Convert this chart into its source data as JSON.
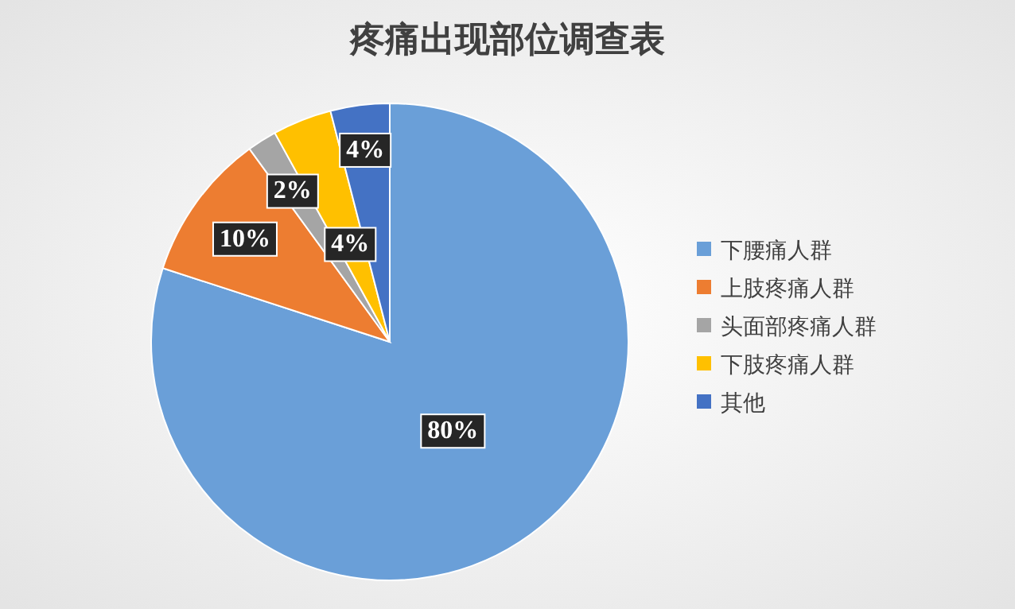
{
  "chart_data": {
    "type": "pie",
    "title": "疼痛出现部位调查表",
    "categories": [
      "下腰痛人群",
      "上肢疼痛人群",
      "头面部疼痛人群",
      "下肢疼痛人群",
      "其他"
    ],
    "values": [
      80,
      10,
      2,
      4,
      4
    ],
    "colors": [
      "#6a9fd8",
      "#ed7d31",
      "#a5a5a5",
      "#ffc000",
      "#4472c4"
    ],
    "value_labels": [
      "80%",
      "10%",
      "2%",
      "4%",
      "4%"
    ],
    "legend": "right"
  }
}
